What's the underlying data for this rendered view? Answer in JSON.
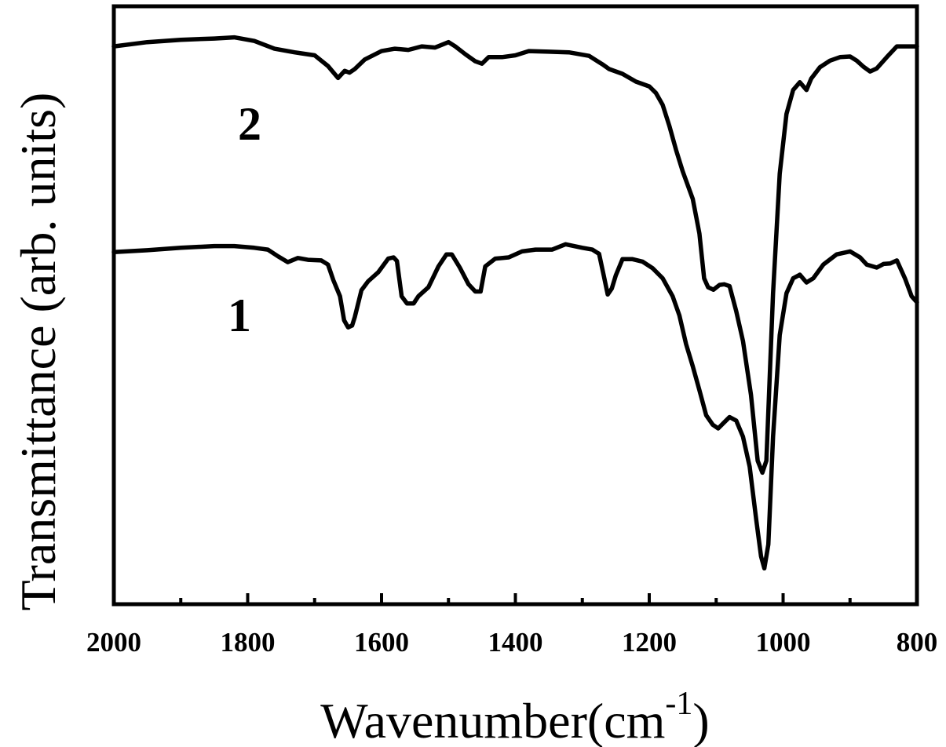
{
  "chart_data": {
    "type": "line",
    "xlabel": "Wavenumber(cm",
    "xlabel_sup": "-1",
    "xlabel_close": ")",
    "ylabel": "Transmittance (arb. units)",
    "xlim": [
      2000,
      800
    ],
    "x_reversed": true,
    "ylim": [
      0,
      100
    ],
    "x_ticks": [
      2000,
      1800,
      1600,
      1400,
      1200,
      1000,
      800
    ],
    "x_tick_labels": [
      "2000",
      "1800",
      "1600",
      "1400",
      "1200",
      "1000",
      "800"
    ],
    "x_minor_ticks": [
      1900,
      1700,
      1500,
      1300,
      1100,
      900
    ],
    "y_ticks_shown": false,
    "grid": false,
    "legend": "none",
    "line_color": "#000000",
    "series": [
      {
        "name": "2",
        "points": [
          [
            2000,
            93.3
          ],
          [
            1950,
            94.0
          ],
          [
            1900,
            94.4
          ],
          [
            1850,
            94.6
          ],
          [
            1820,
            94.8
          ],
          [
            1790,
            94.2
          ],
          [
            1760,
            92.9
          ],
          [
            1730,
            92.3
          ],
          [
            1700,
            91.8
          ],
          [
            1680,
            90.0
          ],
          [
            1665,
            88.0
          ],
          [
            1655,
            89.2
          ],
          [
            1648,
            88.9
          ],
          [
            1640,
            89.5
          ],
          [
            1625,
            91.1
          ],
          [
            1600,
            92.5
          ],
          [
            1580,
            92.9
          ],
          [
            1560,
            92.7
          ],
          [
            1540,
            93.3
          ],
          [
            1520,
            93.1
          ],
          [
            1500,
            94.0
          ],
          [
            1490,
            93.3
          ],
          [
            1475,
            92.0
          ],
          [
            1460,
            90.8
          ],
          [
            1450,
            90.4
          ],
          [
            1440,
            91.5
          ],
          [
            1420,
            91.5
          ],
          [
            1400,
            91.8
          ],
          [
            1380,
            92.5
          ],
          [
            1350,
            92.4
          ],
          [
            1320,
            92.3
          ],
          [
            1290,
            91.7
          ],
          [
            1270,
            90.3
          ],
          [
            1260,
            89.5
          ],
          [
            1240,
            88.7
          ],
          [
            1220,
            87.4
          ],
          [
            1200,
            86.6
          ],
          [
            1190,
            85.5
          ],
          [
            1180,
            83.5
          ],
          [
            1170,
            80.0
          ],
          [
            1160,
            76.0
          ],
          [
            1150,
            72.4
          ],
          [
            1135,
            67.8
          ],
          [
            1125,
            62.0
          ],
          [
            1118,
            54.5
          ],
          [
            1112,
            53.0
          ],
          [
            1104,
            52.6
          ],
          [
            1095,
            53.4
          ],
          [
            1088,
            53.5
          ],
          [
            1080,
            53.2
          ],
          [
            1070,
            49.0
          ],
          [
            1060,
            44.0
          ],
          [
            1048,
            35.0
          ],
          [
            1038,
            24.0
          ],
          [
            1031,
            22.0
          ],
          [
            1025,
            24.0
          ],
          [
            1015,
            52.0
          ],
          [
            1005,
            72.0
          ],
          [
            995,
            82.0
          ],
          [
            985,
            86.0
          ],
          [
            975,
            87.3
          ],
          [
            965,
            86.0
          ],
          [
            958,
            87.9
          ],
          [
            945,
            89.8
          ],
          [
            930,
            90.9
          ],
          [
            915,
            91.5
          ],
          [
            900,
            91.6
          ],
          [
            890,
            90.9
          ],
          [
            880,
            89.9
          ],
          [
            870,
            89.1
          ],
          [
            860,
            89.6
          ],
          [
            845,
            91.5
          ],
          [
            830,
            93.3
          ],
          [
            815,
            93.3
          ],
          [
            800,
            93.3
          ]
        ]
      },
      {
        "name": "1",
        "points": [
          [
            2000,
            58.9
          ],
          [
            1950,
            59.2
          ],
          [
            1900,
            59.6
          ],
          [
            1850,
            59.9
          ],
          [
            1820,
            59.9
          ],
          [
            1790,
            59.6
          ],
          [
            1770,
            59.3
          ],
          [
            1755,
            58.2
          ],
          [
            1740,
            57.2
          ],
          [
            1725,
            57.9
          ],
          [
            1710,
            57.6
          ],
          [
            1690,
            57.5
          ],
          [
            1680,
            56.8
          ],
          [
            1672,
            54.2
          ],
          [
            1662,
            51.5
          ],
          [
            1656,
            47.5
          ],
          [
            1650,
            46.3
          ],
          [
            1644,
            46.6
          ],
          [
            1640,
            48.0
          ],
          [
            1630,
            52.5
          ],
          [
            1620,
            54.0
          ],
          [
            1605,
            55.5
          ],
          [
            1590,
            57.8
          ],
          [
            1582,
            58.0
          ],
          [
            1577,
            57.4
          ],
          [
            1570,
            51.5
          ],
          [
            1562,
            50.3
          ],
          [
            1552,
            50.3
          ],
          [
            1545,
            51.5
          ],
          [
            1530,
            53.0
          ],
          [
            1515,
            56.5
          ],
          [
            1503,
            58.5
          ],
          [
            1495,
            58.5
          ],
          [
            1483,
            56.3
          ],
          [
            1470,
            53.5
          ],
          [
            1460,
            52.3
          ],
          [
            1452,
            52.3
          ],
          [
            1445,
            56.5
          ],
          [
            1430,
            57.8
          ],
          [
            1410,
            58.0
          ],
          [
            1390,
            59.0
          ],
          [
            1370,
            59.3
          ],
          [
            1345,
            59.3
          ],
          [
            1325,
            60.2
          ],
          [
            1300,
            59.6
          ],
          [
            1285,
            59.3
          ],
          [
            1275,
            58.6
          ],
          [
            1268,
            55.0
          ],
          [
            1262,
            51.8
          ],
          [
            1256,
            52.8
          ],
          [
            1250,
            55.0
          ],
          [
            1240,
            57.7
          ],
          [
            1225,
            57.7
          ],
          [
            1210,
            57.3
          ],
          [
            1195,
            56.2
          ],
          [
            1180,
            54.5
          ],
          [
            1165,
            51.5
          ],
          [
            1155,
            48.3
          ],
          [
            1145,
            43.5
          ],
          [
            1135,
            39.8
          ],
          [
            1125,
            35.8
          ],
          [
            1115,
            31.6
          ],
          [
            1105,
            30.0
          ],
          [
            1097,
            29.4
          ],
          [
            1090,
            30.2
          ],
          [
            1080,
            31.3
          ],
          [
            1070,
            30.7
          ],
          [
            1060,
            28.0
          ],
          [
            1050,
            23.0
          ],
          [
            1040,
            14.0
          ],
          [
            1033,
            8.0
          ],
          [
            1028,
            6.0
          ],
          [
            1022,
            10.0
          ],
          [
            1015,
            28.0
          ],
          [
            1005,
            45.0
          ],
          [
            995,
            52.0
          ],
          [
            985,
            54.5
          ],
          [
            975,
            55.1
          ],
          [
            965,
            53.8
          ],
          [
            955,
            54.5
          ],
          [
            940,
            56.8
          ],
          [
            920,
            58.5
          ],
          [
            900,
            59.0
          ],
          [
            885,
            58.0
          ],
          [
            875,
            56.8
          ],
          [
            860,
            56.3
          ],
          [
            850,
            56.9
          ],
          [
            840,
            57.0
          ],
          [
            830,
            57.5
          ],
          [
            818,
            54.5
          ],
          [
            808,
            51.5
          ],
          [
            800,
            50.5
          ]
        ]
      }
    ]
  }
}
